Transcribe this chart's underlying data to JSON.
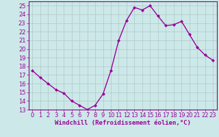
{
  "x": [
    0,
    1,
    2,
    3,
    4,
    5,
    6,
    7,
    8,
    9,
    10,
    11,
    12,
    13,
    14,
    15,
    16,
    17,
    18,
    19,
    20,
    21,
    22,
    23
  ],
  "y": [
    17.5,
    16.7,
    16.0,
    15.3,
    14.9,
    14.0,
    13.5,
    13.0,
    13.5,
    14.8,
    17.5,
    21.0,
    23.3,
    24.8,
    24.5,
    25.0,
    23.8,
    22.7,
    22.8,
    23.2,
    21.7,
    20.2,
    19.3,
    18.7
  ],
  "line_color": "#990099",
  "bg_color": "#cce8e8",
  "grid_color": "#b0c8c8",
  "xlabel": "Windchill (Refroidissement éolien,°C)",
  "xlim": [
    -0.5,
    23.5
  ],
  "ylim": [
    13,
    25.5
  ],
  "yticks": [
    13,
    14,
    15,
    16,
    17,
    18,
    19,
    20,
    21,
    22,
    23,
    24,
    25
  ],
  "xticks": [
    0,
    1,
    2,
    3,
    4,
    5,
    6,
    7,
    8,
    9,
    10,
    11,
    12,
    13,
    14,
    15,
    16,
    17,
    18,
    19,
    20,
    21,
    22,
    23
  ],
  "marker": "D",
  "markersize": 2.0,
  "linewidth": 1.0,
  "xlabel_fontsize": 6.5,
  "tick_fontsize": 6.0,
  "spine_color": "#880088"
}
